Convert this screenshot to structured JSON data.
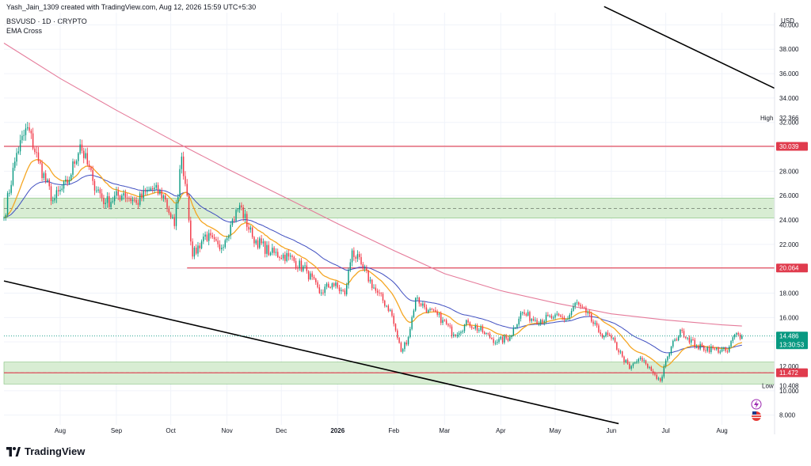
{
  "header": {
    "attribution": "Yash_Jain_1309 created with TradingView.com, Aug 12, 2026 15:59 UTC+5:30",
    "symbol_line": "BSVUSD · 1D · CRYPTO",
    "indicator": "EMA Cross"
  },
  "brand": {
    "name": "TradingView",
    "logo_icon": "tradingview-logo-icon"
  },
  "colors": {
    "up": "#089981",
    "down": "#f23645",
    "ema_fast": "#f5a623",
    "ema_mid": "#3f4ec0",
    "ema_slow": "#e57b9a",
    "level_line": "#e03b4d",
    "trendline": "#000000",
    "zone_fill": "#d8edd3",
    "zone_border": "#7fbf7a",
    "last_price": "#089981"
  },
  "chart_data": {
    "type": "candlestick",
    "y_axis": {
      "currency": "USD",
      "ylim": [
        7.2,
        41.0
      ],
      "ticks": [
        "40.000",
        "38.000",
        "36.000",
        "34.000",
        "32.000",
        "30.000",
        "28.000",
        "26.000",
        "24.000",
        "22.000",
        "20.000",
        "18.000",
        "16.000",
        "14.000",
        "12.000",
        "10.000",
        "8.000"
      ]
    },
    "x_axis": {
      "start": "2025-07-01",
      "end": "2026-08-30",
      "labels": [
        {
          "label": "Aug",
          "date": "2025-08-01"
        },
        {
          "label": "Sep",
          "date": "2025-09-01"
        },
        {
          "label": "Oct",
          "date": "2025-10-01"
        },
        {
          "label": "Nov",
          "date": "2025-11-01"
        },
        {
          "label": "Dec",
          "date": "2025-12-01"
        },
        {
          "label": "2026",
          "date": "2026-01-01"
        },
        {
          "label": "Feb",
          "date": "2026-02-01"
        },
        {
          "label": "Mar",
          "date": "2026-03-01"
        },
        {
          "label": "Apr",
          "date": "2026-04-01"
        },
        {
          "label": "May",
          "date": "2026-05-01"
        },
        {
          "label": "Jun",
          "date": "2026-06-01"
        },
        {
          "label": "Jul",
          "date": "2026-07-01"
        },
        {
          "label": "Aug",
          "date": "2026-08-01"
        }
      ]
    },
    "price_path": [
      [
        "2025-07-01",
        24.2
      ],
      [
        "2025-07-08",
        29.5
      ],
      [
        "2025-07-14",
        31.6
      ],
      [
        "2025-07-20",
        28.8
      ],
      [
        "2025-07-28",
        25.6
      ],
      [
        "2025-08-05",
        27.0
      ],
      [
        "2025-08-12",
        30.2
      ],
      [
        "2025-08-19",
        27.2
      ],
      [
        "2025-08-26",
        25.4
      ],
      [
        "2025-09-05",
        26.2
      ],
      [
        "2025-09-12",
        25.4
      ],
      [
        "2025-09-20",
        26.6
      ],
      [
        "2025-09-27",
        26.0
      ],
      [
        "2025-10-03",
        23.5
      ],
      [
        "2025-10-07",
        29.2
      ],
      [
        "2025-10-10",
        26.0
      ],
      [
        "2025-10-13",
        21.0
      ],
      [
        "2025-10-20",
        22.8
      ],
      [
        "2025-10-28",
        21.6
      ],
      [
        "2025-11-03",
        23.6
      ],
      [
        "2025-11-08",
        25.2
      ],
      [
        "2025-11-15",
        22.6
      ],
      [
        "2025-11-25",
        21.3
      ],
      [
        "2025-12-05",
        21.0
      ],
      [
        "2025-12-15",
        19.8
      ],
      [
        "2025-12-22",
        18.0
      ],
      [
        "2025-12-29",
        18.8
      ],
      [
        "2026-01-05",
        17.9
      ],
      [
        "2026-01-09",
        21.5
      ],
      [
        "2026-01-15",
        20.0
      ],
      [
        "2026-01-22",
        18.2
      ],
      [
        "2026-01-30",
        16.6
      ],
      [
        "2026-02-05",
        13.2
      ],
      [
        "2026-02-09",
        14.4
      ],
      [
        "2026-02-13",
        17.6
      ],
      [
        "2026-02-20",
        16.6
      ],
      [
        "2026-02-28",
        15.8
      ],
      [
        "2026-03-06",
        14.6
      ],
      [
        "2026-03-14",
        15.6
      ],
      [
        "2026-03-22",
        14.8
      ],
      [
        "2026-03-30",
        14.0
      ],
      [
        "2026-04-06",
        14.4
      ],
      [
        "2026-04-12",
        16.4
      ],
      [
        "2026-04-20",
        15.8
      ],
      [
        "2026-04-30",
        16.0
      ],
      [
        "2026-05-08",
        15.9
      ],
      [
        "2026-05-12",
        17.2
      ],
      [
        "2026-05-18",
        16.4
      ],
      [
        "2026-05-25",
        14.8
      ],
      [
        "2026-06-01",
        14.3
      ],
      [
        "2026-06-07",
        12.8
      ],
      [
        "2026-06-11",
        11.8
      ],
      [
        "2026-06-16",
        12.6
      ],
      [
        "2026-06-20",
        12.2
      ],
      [
        "2026-06-25",
        11.3
      ],
      [
        "2026-06-28",
        10.8
      ],
      [
        "2026-07-02",
        12.8
      ],
      [
        "2026-07-06",
        14.2
      ],
      [
        "2026-07-10",
        14.9
      ],
      [
        "2026-07-18",
        13.6
      ],
      [
        "2026-07-28",
        13.4
      ],
      [
        "2026-08-04",
        13.2
      ],
      [
        "2026-08-08",
        14.6
      ],
      [
        "2026-08-12",
        14.486
      ]
    ],
    "zones": [
      {
        "from": 24.15,
        "to": 25.8,
        "mid": 24.95
      },
      {
        "from": 10.55,
        "to": 12.35,
        "mid": 11.472
      }
    ],
    "horizontal_levels": [
      {
        "price": 30.039,
        "label": "30.039",
        "start": "2025-07-01"
      },
      {
        "price": 20.064,
        "label": "20.064",
        "start": "2025-10-10"
      },
      {
        "price": 11.472,
        "label": "11.472",
        "start": "2025-07-01"
      }
    ],
    "trendlines": [
      {
        "p1": {
          "date": "2025-07-01",
          "price": 19.0
        },
        "p2": {
          "date": "2026-06-05",
          "price": 7.3
        }
      },
      {
        "p1": {
          "date": "2026-05-28",
          "price": 41.5
        },
        "p2": {
          "date": "2026-08-30",
          "price": 34.8
        }
      }
    ],
    "ema_slow_path": [
      [
        "2025-07-01",
        38.5
      ],
      [
        "2025-08-01",
        35.6
      ],
      [
        "2025-09-01",
        33.0
      ],
      [
        "2025-10-01",
        30.6
      ],
      [
        "2025-11-01",
        28.2
      ],
      [
        "2025-12-01",
        26.0
      ],
      [
        "2026-01-01",
        23.7
      ],
      [
        "2026-02-01",
        21.5
      ],
      [
        "2026-03-01",
        19.6
      ],
      [
        "2026-04-01",
        18.2
      ],
      [
        "2026-05-01",
        17.2
      ],
      [
        "2026-06-01",
        16.3
      ],
      [
        "2026-07-01",
        15.8
      ],
      [
        "2026-08-01",
        15.4
      ],
      [
        "2026-08-12",
        15.3
      ]
    ],
    "ema_period_mid": 50,
    "ema_period_fast": 20,
    "high": {
      "label": "High",
      "value": "32.366"
    },
    "low": {
      "label": "Low",
      "value": "10.408"
    },
    "last": {
      "value": "14.486",
      "countdown": "13:30:53"
    },
    "events_icon": "lightning-icon",
    "flag_icon": "us-flag-icon"
  }
}
